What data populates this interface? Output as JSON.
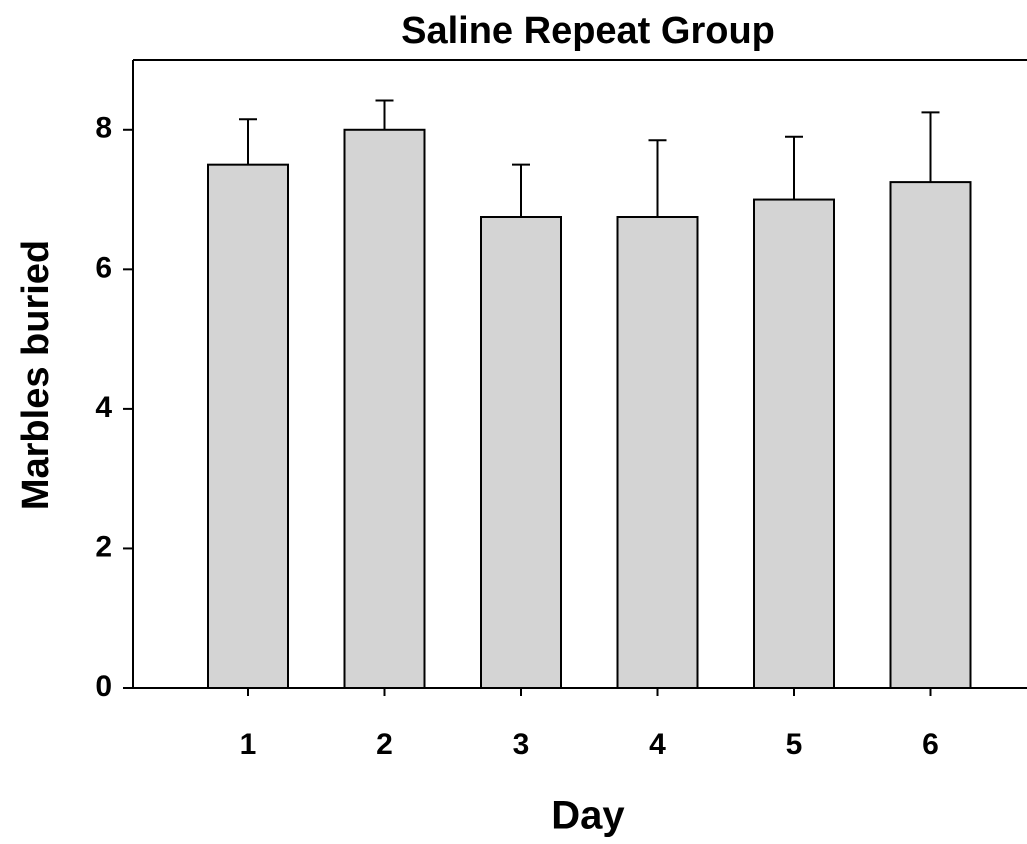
{
  "chart_data": {
    "type": "bar",
    "title": "Saline Repeat Group",
    "x_label": "Day",
    "y_label": "Marbles buried",
    "categories": [
      "1",
      "2",
      "3",
      "4",
      "5",
      "6"
    ],
    "values": [
      7.5,
      8.0,
      6.75,
      6.75,
      7.0,
      7.25
    ],
    "errors": [
      0.65,
      0.42,
      0.75,
      1.1,
      0.9,
      1.0
    ],
    "color": "#d4d4d4",
    "ylim": [
      0,
      9
    ],
    "yticks": [
      0,
      2,
      4,
      6,
      8
    ],
    "grid": false
  }
}
